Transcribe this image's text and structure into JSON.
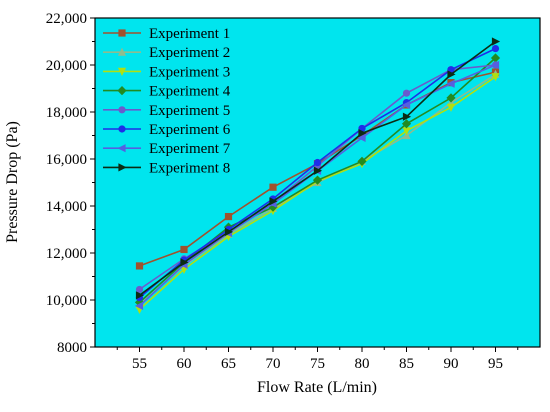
{
  "chart_data": {
    "type": "line",
    "title": "",
    "xlabel": "Flow Rate (L/min)",
    "ylabel": "Pressure Drop (Pa)",
    "x": [
      55,
      60,
      65,
      70,
      75,
      80,
      85,
      90,
      95
    ],
    "x_ticks": [
      "55",
      "60",
      "65",
      "70",
      "75",
      "80",
      "85",
      "90",
      "95"
    ],
    "xlim": [
      50,
      100
    ],
    "ylim": [
      8000,
      22000
    ],
    "y_ticks": [
      "8000",
      "10,000",
      "12,000",
      "14,000",
      "16,000",
      "18,000",
      "20,000",
      "22,000"
    ],
    "y_tick_values": [
      8000,
      10000,
      12000,
      14000,
      16000,
      18000,
      20000,
      22000
    ],
    "background_color": "#00e5ee",
    "grid": false,
    "legend_position": "top-left",
    "series": [
      {
        "name": "Experiment 1",
        "color": "#a0522d",
        "marker": "square",
        "values": [
          11450,
          12150,
          13550,
          14800,
          15800,
          17000,
          18300,
          19250,
          19700
        ]
      },
      {
        "name": "Experiment 2",
        "color": "#8fbc8f",
        "marker": "triangle-up",
        "values": [
          9800,
          11450,
          12800,
          13900,
          15000,
          15900,
          17000,
          18400,
          19600
        ]
      },
      {
        "name": "Experiment 3",
        "color": "#b0e010",
        "marker": "triangle-down",
        "values": [
          9600,
          11300,
          12700,
          13800,
          15050,
          15800,
          17200,
          18200,
          19500
        ]
      },
      {
        "name": "Experiment 4",
        "color": "#228b22",
        "marker": "diamond",
        "values": [
          9900,
          11600,
          13100,
          13950,
          15100,
          15900,
          17500,
          18600,
          20300
        ]
      },
      {
        "name": "Experiment 5",
        "color": "#6a5acd",
        "marker": "circle",
        "values": [
          10450,
          11750,
          12900,
          14150,
          15700,
          17300,
          18800,
          19800,
          20000
        ]
      },
      {
        "name": "Experiment 6",
        "color": "#1e2ee8",
        "marker": "circle",
        "values": [
          10100,
          11700,
          13000,
          14300,
          15850,
          17300,
          18400,
          19800,
          20700
        ]
      },
      {
        "name": "Experiment 7",
        "color": "#5560e0",
        "marker": "triangle-left",
        "values": [
          9750,
          11500,
          12850,
          14100,
          15500,
          16900,
          18300,
          19200,
          20000
        ]
      },
      {
        "name": "Experiment 8",
        "color": "#0b2c14",
        "marker": "triangle-right",
        "values": [
          10200,
          11600,
          12900,
          14200,
          15500,
          17100,
          17800,
          19600,
          21000
        ]
      }
    ]
  }
}
